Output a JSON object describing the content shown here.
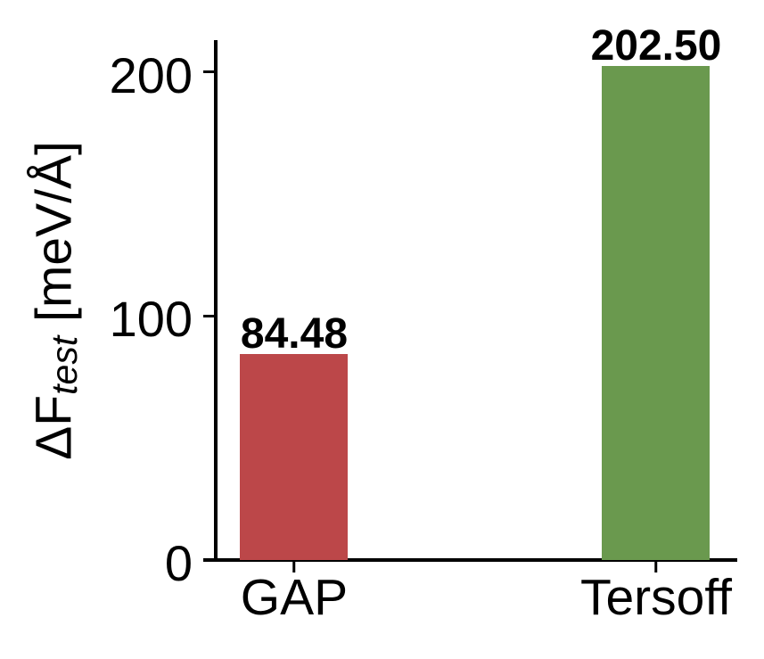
{
  "chart_data": {
    "type": "bar",
    "title": "",
    "categories": [
      "GAP",
      "Tersoff"
    ],
    "values": [
      84.48,
      202.5
    ],
    "value_labels": [
      "84.48",
      "202.50"
    ],
    "bar_colors": [
      "#bc4749",
      "#6a994e"
    ],
    "ylabel": {
      "prefix": "ΔF",
      "subscript": "test",
      "suffix": " [meV/Å]"
    },
    "xlabel": "",
    "yticks": [
      0,
      100,
      200
    ],
    "ytick_labels": [
      "0",
      "100",
      "200"
    ],
    "ylim": [
      0,
      213
    ],
    "grid": false,
    "legend_position": "none",
    "axis_color": "#000000",
    "text_color": "#000000",
    "background_color": "#ffffff"
  }
}
